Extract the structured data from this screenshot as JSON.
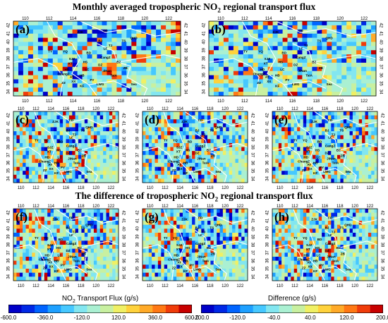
{
  "titles": {
    "top_prefix": "Monthly averaged tropospheric NO",
    "top_sub": "2",
    "top_suffix": " regional transport flux",
    "diff_prefix": "The difference of tropospheric NO",
    "diff_sub": "2",
    "diff_suffix": " regional transport flux"
  },
  "panels": [
    {
      "label": "(a)",
      "kind": "flux"
    },
    {
      "label": "(b)",
      "kind": "flux"
    },
    {
      "label": "(c)",
      "kind": "flux"
    },
    {
      "label": "(d)",
      "kind": "flux"
    },
    {
      "label": "(e)",
      "kind": "flux"
    },
    {
      "label": "(f)",
      "kind": "diff"
    },
    {
      "label": "(g)",
      "kind": "diff"
    },
    {
      "label": "(h)",
      "kind": "diff"
    }
  ],
  "axes": {
    "lon_ticks": [
      "110",
      "112",
      "114",
      "116",
      "118",
      "120",
      "122"
    ],
    "lat_ticks": [
      "34",
      "35",
      "36",
      "37",
      "38",
      "39",
      "40",
      "41",
      "42"
    ]
  },
  "cities": [
    "CD",
    "ZJK",
    "BJ",
    "TJ",
    "TS",
    "QHD",
    "TY",
    "YQ",
    "SJZ",
    "BD",
    "LF",
    "CangZ",
    "HS",
    "XT",
    "DZ",
    "BZ",
    "HD",
    "LC",
    "JiNan",
    "ZB",
    "ChangZ",
    "AY",
    "HB",
    "TaiA",
    "PY",
    "ZZ",
    "XX",
    "LWG",
    "KF",
    "Sea"
  ],
  "colorbars": [
    {
      "title_prefix": "NO",
      "title_sub": "2",
      "title_suffix": " Transport Flux (g/s)",
      "ticks": [
        "-600.0",
        "-360.0",
        "-120.0",
        "120.0",
        "360.0",
        "600.0"
      ]
    },
    {
      "title_prefix": "Difference (g/s)",
      "title_sub": "",
      "title_suffix": "",
      "ticks": [
        "-200.0",
        "-120.0",
        "-40.0",
        "40.0",
        "120.0",
        "200.0"
      ]
    }
  ],
  "palette": [
    "#0000c8",
    "#0028e6",
    "#0064ff",
    "#1ea0ff",
    "#46c8ff",
    "#82e6f0",
    "#aaf0d2",
    "#c8f0a0",
    "#f0f064",
    "#ffd23c",
    "#ffaa28",
    "#ff7814",
    "#f03c0a",
    "#c80000"
  ]
}
